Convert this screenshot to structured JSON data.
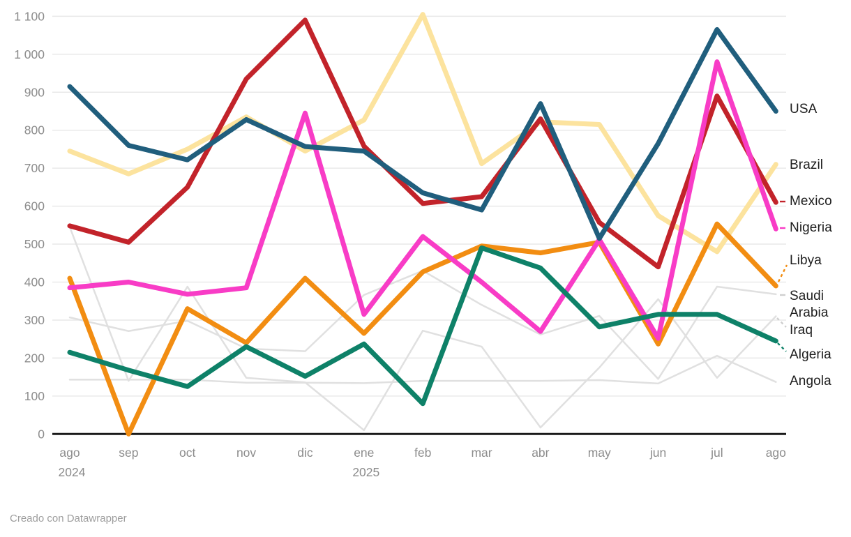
{
  "footer": {
    "text": "Creado con Datawrapper"
  },
  "chart_data": {
    "type": "line",
    "title": "",
    "grid": true,
    "legend_position": "right-direct-labels",
    "ylim": [
      0,
      1100
    ],
    "y_tick_step": 100,
    "y_tick_labels": [
      "0",
      "100",
      "200",
      "300",
      "400",
      "500",
      "600",
      "700",
      "800",
      "900",
      "1 000",
      "1 100"
    ],
    "x_categories": [
      {
        "label": "ago",
        "sub": "2024"
      },
      {
        "label": "sep"
      },
      {
        "label": "oct"
      },
      {
        "label": "nov"
      },
      {
        "label": "dic"
      },
      {
        "label": "ene",
        "sub": "2025"
      },
      {
        "label": "feb"
      },
      {
        "label": "mar"
      },
      {
        "label": "abr"
      },
      {
        "label": "may"
      },
      {
        "label": "jun"
      },
      {
        "label": "jul"
      },
      {
        "label": "ago"
      }
    ],
    "series": [
      {
        "name": "USA",
        "slug": "usa",
        "color": "#205e7d",
        "gray": false,
        "values": [
          915,
          760,
          722,
          828,
          757,
          745,
          635,
          590,
          870,
          515,
          765,
          1065,
          850
        ]
      },
      {
        "name": "Brazil",
        "slug": "brazil",
        "color": "#fce39e",
        "gray": false,
        "values": [
          745,
          685,
          750,
          835,
          745,
          827,
          1105,
          712,
          822,
          815,
          575,
          480,
          710
        ]
      },
      {
        "name": "Mexico",
        "slug": "mexico",
        "color": "#c2232a",
        "gray": false,
        "values": [
          548,
          505,
          650,
          935,
          1090,
          758,
          607,
          625,
          830,
          557,
          440,
          890,
          610
        ]
      },
      {
        "name": "Nigeria",
        "slug": "nigeria",
        "color": "#f83cc6",
        "gray": false,
        "values": [
          385,
          400,
          368,
          385,
          845,
          315,
          520,
          400,
          270,
          512,
          252,
          980,
          540
        ]
      },
      {
        "name": "Libya",
        "slug": "libya",
        "color": "#f28d12",
        "gray": false,
        "values": [
          410,
          0,
          330,
          240,
          410,
          265,
          427,
          495,
          477,
          505,
          237,
          553,
          390
        ]
      },
      {
        "name": "Saudi Arabia",
        "slug": "saudi-arabia",
        "color": "#e0e0e0",
        "gray": true,
        "values": [
          307,
          271,
          298,
          225,
          218,
          366,
          430,
          340,
          262,
          311,
          145,
          388,
          368
        ]
      },
      {
        "name": "Iraq",
        "slug": "iraq",
        "color": "#e0e0e0",
        "gray": true,
        "values": [
          545,
          140,
          388,
          148,
          136,
          10,
          272,
          230,
          17,
          175,
          355,
          148,
          310
        ]
      },
      {
        "name": "Algeria",
        "slug": "algeria",
        "color": "#0e8168",
        "gray": false,
        "values": [
          215,
          168,
          125,
          230,
          152,
          237,
          80,
          490,
          437,
          282,
          315,
          315,
          245
        ]
      },
      {
        "name": "Angola",
        "slug": "angola",
        "color": "#e0e0e0",
        "gray": true,
        "values": [
          143,
          143,
          143,
          135,
          135,
          134,
          140,
          140,
          140,
          142,
          133,
          206,
          137
        ]
      }
    ]
  }
}
